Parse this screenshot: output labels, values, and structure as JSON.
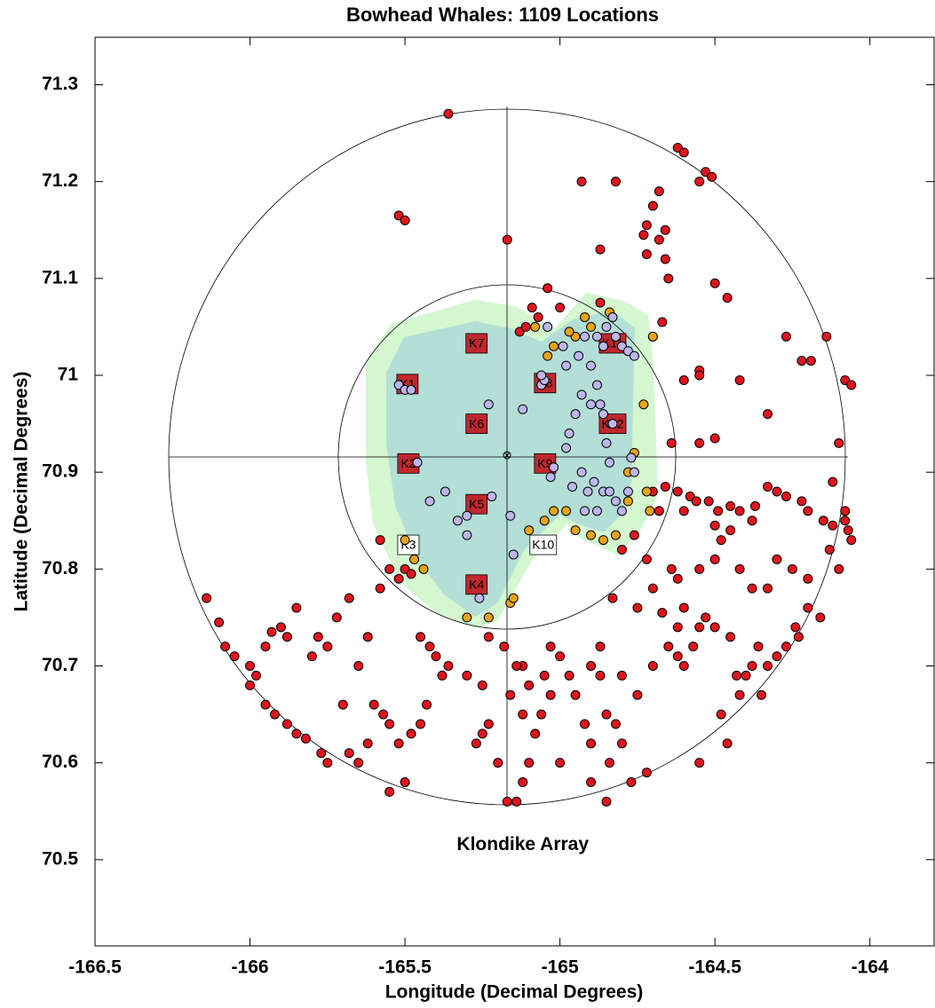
{
  "chart_data": {
    "type": "scatter",
    "title": "Bowhead Whales: 1109 Locations",
    "x_label": "Longitude (Decimal Degrees)",
    "y_label": "Latitude (Decimal Degrees)",
    "annotation": {
      "text": "Klondike Array",
      "x": -165.12,
      "y": 70.515
    },
    "xlim": [
      -166.5,
      -163.79
    ],
    "ylim": [
      70.411,
      71.349
    ],
    "xticks": [
      -166.5,
      -166,
      -165.5,
      -165,
      -164.5,
      -164
    ],
    "yticks": [
      70.5,
      70.6,
      70.7,
      70.8,
      70.9,
      71,
      71.1,
      71.2,
      71.3
    ],
    "sensors": [
      {
        "label": "K1",
        "x": -165.492,
        "y": 70.991,
        "color": "#c1272d"
      },
      {
        "label": "K2",
        "x": -165.489,
        "y": 70.909,
        "color": "#c1272d"
      },
      {
        "label": "K3",
        "x": -165.489,
        "y": 70.825,
        "color": "#ffffff"
      },
      {
        "label": "K4",
        "x": -165.269,
        "y": 70.784,
        "color": "#c1272d"
      },
      {
        "label": "K5",
        "x": -165.269,
        "y": 70.867,
        "color": "#c1272d"
      },
      {
        "label": "K6",
        "x": -165.269,
        "y": 70.95,
        "color": "#c1272d"
      },
      {
        "label": "K7",
        "x": -165.269,
        "y": 71.033,
        "color": "#c1272d"
      },
      {
        "label": "K8",
        "x": -165.048,
        "y": 70.992,
        "color": "#c1272d"
      },
      {
        "label": "K9",
        "x": -165.048,
        "y": 70.909,
        "color": "#c1272d"
      },
      {
        "label": "K10",
        "x": -165.054,
        "y": 70.825,
        "color": "#ffffff"
      },
      {
        "label": "K11",
        "x": -164.83,
        "y": 71.033,
        "color": "#c1272d"
      },
      {
        "label": "K12",
        "x": -164.83,
        "y": 70.95,
        "color": "#c1272d"
      }
    ],
    "series": [
      {
        "color": "#e0141e",
        "x": [
          -165.36,
          -165.52,
          -165.5,
          -165.17,
          -164.93,
          -164.82,
          -164.62,
          -164.6,
          -164.53,
          -164.51,
          -164.55,
          -164.68,
          -164.7,
          -164.72,
          -164.73,
          -164.68,
          -164.72,
          -164.66,
          -164.87,
          -164.87,
          -164.66,
          -164.65,
          -164.5,
          -164.46,
          -165.04,
          -165.09,
          -165.07,
          -165.13,
          -165.11,
          -165.0,
          -164.67,
          -164.7,
          -164.55,
          -164.55,
          -164.6,
          -164.42,
          -164.27,
          -164.22,
          -164.19,
          -164.14,
          -164.08,
          -164.06,
          -164.33,
          -164.5,
          -164.55,
          -164.64,
          -164.1,
          -164.12,
          -164.7,
          -164.66,
          -164.62,
          -164.58,
          -164.56,
          -164.52,
          -164.49,
          -164.45,
          -164.42,
          -164.37,
          -164.33,
          -164.3,
          -164.27,
          -164.22,
          -164.2,
          -164.15,
          -164.12,
          -164.08,
          -164.07,
          -164.06,
          -164.08,
          -164.6,
          -164.68,
          -164.5,
          -164.38,
          -164.45,
          -164.8,
          -164.76,
          -164.72,
          -164.7,
          -164.64,
          -164.62,
          -164.6,
          -164.67,
          -164.62,
          -164.55,
          -164.5,
          -164.48,
          -164.42,
          -164.38,
          -164.33,
          -164.3,
          -164.25,
          -164.2,
          -164.13,
          -164.1,
          -164.16,
          -164.2,
          -164.23,
          -164.27,
          -164.3,
          -164.33,
          -164.36,
          -164.38,
          -164.4,
          -164.43,
          -164.45,
          -164.5,
          -164.53,
          -164.55,
          -164.57,
          -164.6,
          -164.62,
          -164.65,
          -164.7,
          -164.75,
          -164.8,
          -164.87,
          -164.9,
          -164.87,
          -164.85,
          -164.82,
          -164.8,
          -164.84,
          -164.9,
          -164.92,
          -164.95,
          -164.97,
          -165.0,
          -165.03,
          -165.05,
          -165.03,
          -165.06,
          -165.08,
          -165.1,
          -165.12,
          -165.14,
          -165.16,
          -165.12,
          -165.1,
          -165.12,
          -165.14,
          -165.17,
          -165.2,
          -165.23,
          -165.25,
          -165.27,
          -165.3,
          -165.25,
          -165.36,
          -165.38,
          -165.4,
          -165.42,
          -165.45,
          -165.43,
          -165.45,
          -165.48,
          -165.5,
          -165.52,
          -165.55,
          -165.57,
          -165.6,
          -165.62,
          -165.65,
          -165.68,
          -165.7,
          -165.65,
          -165.62,
          -165.58,
          -165.55,
          -165.52,
          -165.5,
          -165.48,
          -165.58,
          -165.68,
          -165.72,
          -165.75,
          -165.78,
          -165.8,
          -165.85,
          -165.88,
          -165.9,
          -165.93,
          -165.95,
          -165.98,
          -166.0,
          -166.05,
          -166.08,
          -166.1,
          -166.14,
          -165.95,
          -165.92,
          -165.88,
          -165.85,
          -165.82,
          -166.0,
          -165.77,
          -165.75,
          -165.55,
          -164.75,
          -164.77,
          -164.85,
          -164.9,
          -165.0,
          -165.18,
          -165.23,
          -164.83,
          -164.46,
          -164.48,
          -164.42,
          -164.35,
          -164.24,
          -164.55,
          -164.72
        ],
        "y": [
          71.27,
          71.165,
          71.16,
          71.14,
          71.2,
          71.2,
          71.235,
          71.23,
          71.21,
          71.205,
          71.2,
          71.19,
          71.175,
          71.155,
          71.145,
          71.14,
          71.125,
          71.15,
          71.13,
          71.075,
          71.12,
          71.1,
          71.095,
          71.08,
          71.09,
          71.07,
          71.06,
          71.045,
          71.05,
          71.07,
          71.055,
          71.04,
          71.005,
          71.0,
          70.995,
          70.995,
          71.04,
          71.015,
          71.015,
          71.04,
          70.995,
          70.99,
          70.96,
          70.935,
          70.93,
          70.93,
          70.93,
          70.89,
          70.88,
          70.885,
          70.88,
          70.875,
          70.87,
          70.87,
          70.86,
          70.865,
          70.86,
          70.865,
          70.885,
          70.88,
          70.875,
          70.87,
          70.86,
          70.85,
          70.845,
          70.85,
          70.84,
          70.83,
          70.86,
          70.86,
          70.86,
          70.845,
          70.85,
          70.84,
          70.82,
          70.835,
          70.81,
          70.78,
          70.8,
          70.79,
          70.76,
          70.755,
          70.74,
          70.8,
          70.81,
          70.83,
          70.8,
          70.78,
          70.78,
          70.81,
          70.8,
          70.79,
          70.82,
          70.8,
          70.75,
          70.76,
          70.73,
          70.72,
          70.71,
          70.7,
          70.72,
          70.7,
          70.69,
          70.69,
          70.73,
          70.74,
          70.75,
          70.74,
          70.72,
          70.7,
          70.71,
          70.72,
          70.7,
          70.67,
          70.69,
          70.69,
          70.7,
          70.72,
          70.65,
          70.64,
          70.62,
          70.6,
          70.62,
          70.64,
          70.67,
          70.69,
          70.71,
          70.72,
          70.69,
          70.67,
          70.65,
          70.63,
          70.68,
          70.7,
          70.7,
          70.67,
          70.65,
          70.6,
          70.58,
          70.56,
          70.56,
          70.6,
          70.64,
          70.63,
          70.62,
          70.69,
          70.68,
          70.7,
          70.69,
          70.71,
          70.72,
          70.73,
          70.66,
          70.64,
          70.63,
          70.58,
          70.62,
          70.64,
          70.65,
          70.66,
          70.62,
          70.6,
          70.61,
          70.66,
          70.7,
          70.73,
          70.78,
          70.8,
          70.79,
          70.8,
          70.795,
          70.83,
          70.77,
          70.75,
          70.72,
          70.73,
          70.71,
          70.76,
          70.73,
          70.74,
          70.735,
          70.72,
          70.69,
          70.7,
          70.71,
          70.72,
          70.745,
          70.77,
          70.66,
          70.65,
          70.64,
          70.63,
          70.625,
          70.68,
          70.61,
          70.6,
          70.57,
          70.76,
          70.58,
          70.56,
          70.58,
          70.6,
          70.72,
          70.73,
          70.77,
          70.62,
          70.65,
          70.67,
          70.67,
          70.74,
          70.6,
          70.59
        ]
      },
      {
        "color": "#e8a317",
        "x": [
          -165.5,
          -165.47,
          -165.44,
          -165.3,
          -165.23,
          -165.16,
          -165.15,
          -165.1,
          -165.05,
          -165.02,
          -164.98,
          -164.95,
          -164.9,
          -164.86,
          -164.82,
          -164.78,
          -164.76,
          -164.72,
          -164.71,
          -164.73,
          -164.7,
          -164.84,
          -164.92,
          -164.95,
          -164.97,
          -165.02,
          -165.04,
          -165.08,
          -164.9,
          -164.78
        ],
        "y": [
          70.83,
          70.81,
          70.8,
          70.75,
          70.75,
          70.765,
          70.77,
          70.84,
          70.85,
          70.86,
          70.86,
          70.84,
          70.835,
          70.83,
          70.835,
          70.9,
          70.92,
          70.88,
          70.86,
          70.97,
          71.04,
          71.065,
          71.06,
          71.04,
          71.045,
          71.03,
          71.02,
          71.05,
          71.05,
          70.87
        ]
      },
      {
        "color": "#bdb6ec",
        "x": [
          -165.52,
          -165.5,
          -165.48,
          -165.46,
          -165.42,
          -165.37,
          -165.33,
          -165.3,
          -165.3,
          -165.22,
          -165.26,
          -165.23,
          -165.16,
          -165.15,
          -165.12,
          -165.06,
          -165.05,
          -165.06,
          -165.03,
          -165.02,
          -164.98,
          -164.97,
          -164.95,
          -164.93,
          -164.9,
          -164.88,
          -164.86,
          -164.85,
          -164.83,
          -164.87,
          -164.9,
          -164.94,
          -164.98,
          -164.92,
          -164.85,
          -164.82,
          -164.8,
          -164.78,
          -164.76,
          -164.83,
          -164.86,
          -164.93,
          -164.91,
          -164.89,
          -164.86,
          -164.84,
          -164.82,
          -164.8,
          -164.78,
          -164.76,
          -164.77,
          -164.84,
          -164.88,
          -164.92,
          -164.96,
          -165.04,
          -164.99,
          -164.88
        ],
        "y": [
          70.99,
          70.985,
          70.985,
          70.91,
          70.87,
          70.88,
          70.85,
          70.855,
          70.835,
          70.875,
          70.77,
          70.97,
          70.855,
          70.815,
          70.965,
          70.99,
          70.995,
          71.0,
          70.895,
          70.905,
          70.925,
          70.94,
          70.96,
          70.98,
          71.01,
          70.99,
          70.96,
          70.93,
          70.95,
          70.97,
          70.97,
          71.02,
          71.01,
          71.04,
          71.05,
          71.04,
          71.03,
          71.025,
          71.02,
          71.06,
          71.03,
          70.9,
          70.88,
          70.89,
          70.88,
          70.88,
          70.87,
          70.86,
          70.88,
          70.9,
          70.915,
          70.91,
          70.86,
          70.86,
          70.885,
          71.05,
          71.03,
          71.04
        ]
      }
    ]
  }
}
